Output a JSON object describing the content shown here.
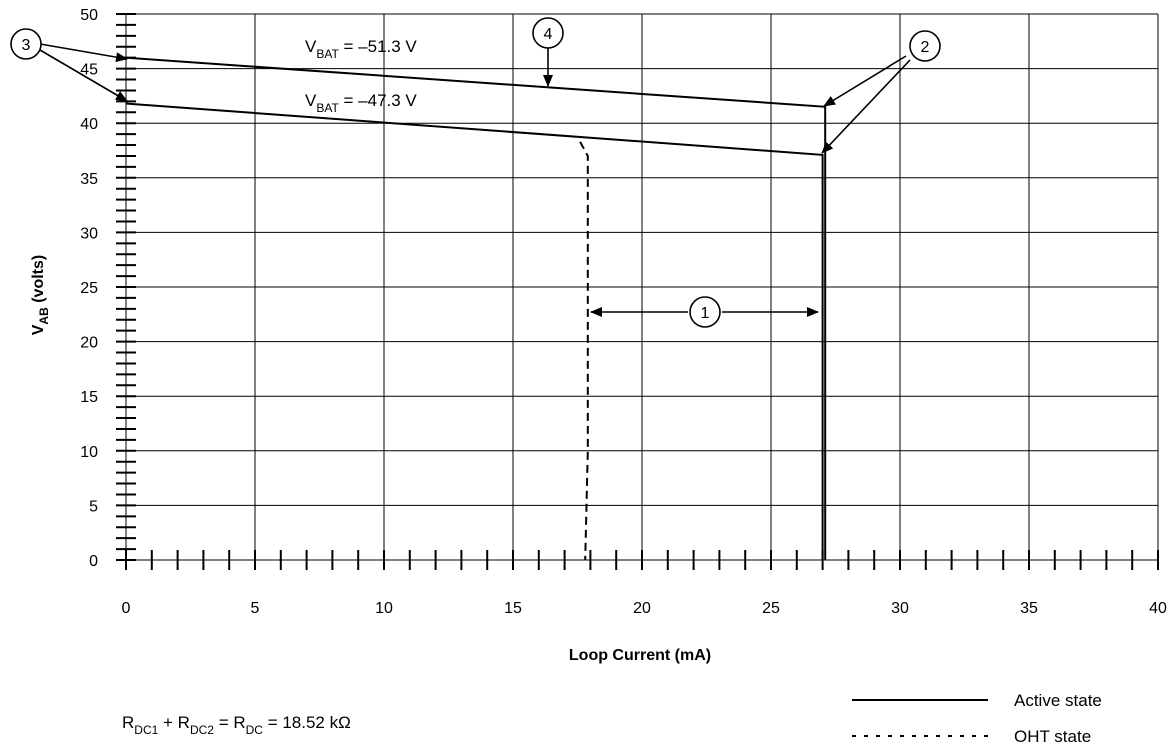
{
  "chart_data": {
    "type": "line",
    "xlabel": "Loop Current (mA)",
    "ylabel": {
      "main": "V",
      "sub": "AB",
      "rest": " (volts)"
    },
    "xlim": [
      0,
      40
    ],
    "ylim": [
      0,
      50
    ],
    "xticks": [
      0,
      5,
      10,
      15,
      20,
      25,
      30,
      35,
      40
    ],
    "yticks": [
      0,
      5,
      10,
      15,
      20,
      25,
      30,
      35,
      40,
      45,
      50
    ],
    "grid": true,
    "series": [
      {
        "name": "",
        "style": "solid",
        "x": [
          0,
          27.1,
          27.1
        ],
        "y": [
          46.0,
          41.5,
          0
        ]
      },
      {
        "name": "",
        "style": "solid",
        "x": [
          0,
          27.0,
          27.0
        ],
        "y": [
          41.8,
          37.1,
          0
        ]
      },
      {
        "name": "",
        "style": "dashed",
        "x": [
          17.6,
          17.9,
          17.9,
          17.8
        ],
        "y": [
          38.3,
          37.0,
          10.0,
          0
        ]
      }
    ],
    "annotations": {
      "vbat_high": {
        "main": "V",
        "sub": "BAT",
        "rest": " = –51.3 V"
      },
      "vbat_low": {
        "main": "V",
        "sub": "BAT",
        "rest": " = –47.3 V"
      },
      "markers": [
        "1",
        "2",
        "3",
        "4"
      ]
    },
    "legend": {
      "placement": "bottom-right",
      "entries": [
        {
          "label": "Active state",
          "style": "solid"
        },
        {
          "label": "OHT state",
          "style": "dotted"
        }
      ]
    },
    "equation": {
      "t1": "R",
      "s1": "DC1",
      "t2": " + R",
      "s2": "DC2",
      "t3": " = R",
      "s3": "DC",
      "t4": " = 18.52 kΩ"
    }
  }
}
